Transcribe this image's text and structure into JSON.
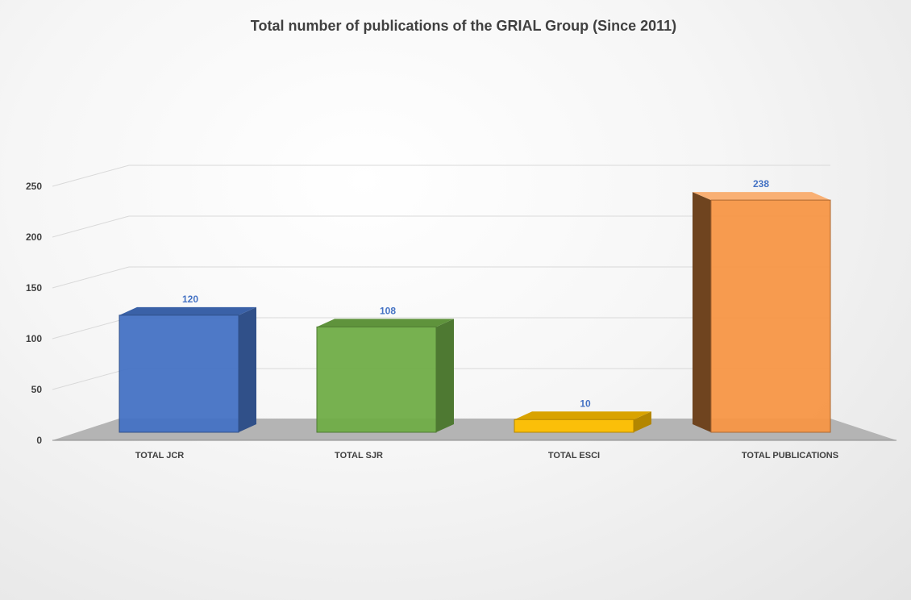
{
  "chart_data": {
    "type": "bar",
    "title": "Total number of publications of the GRIAL Group  (Since 2011)",
    "categories": [
      "TOTAL JCR",
      "TOTAL SJR",
      "TOTAL ESCI",
      "TOTAL PUBLICATIONS"
    ],
    "values": [
      120,
      108,
      10,
      238
    ],
    "data_labels": [
      "120",
      "108",
      "10",
      "238"
    ],
    "colors": [
      "#4472c4",
      "#70ad47",
      "#ffc000",
      "#f79646"
    ],
    "y_ticks": [
      0,
      50,
      100,
      150,
      200,
      250
    ],
    "ylim": [
      0,
      250
    ],
    "xlabel": "",
    "ylabel": "",
    "grid": true,
    "legend": "none",
    "style": "3d-clustered-column"
  }
}
